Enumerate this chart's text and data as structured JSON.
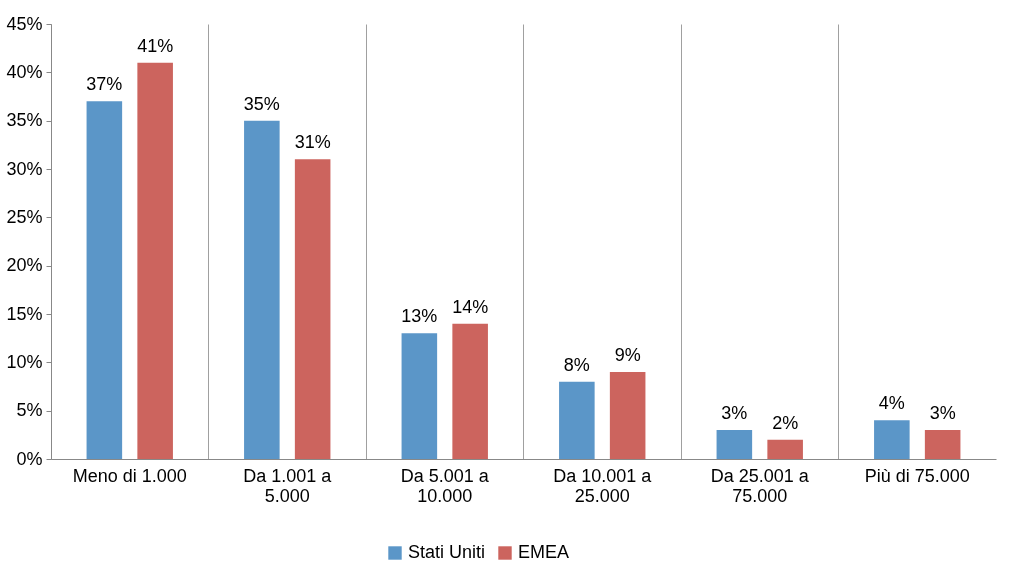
{
  "chart_data": {
    "type": "bar",
    "categories": [
      "Meno di 1.000",
      "Da 1.001 a 5.000",
      "Da 5.001 a 10.000",
      "Da 10.001 a 25.000",
      "Da 25.001 a 75.000",
      "Più di 75.000"
    ],
    "series": [
      {
        "name": "Stati Uniti",
        "color": "#5b96c8",
        "values": [
          37,
          35,
          13,
          8,
          3,
          4
        ],
        "value_labels": [
          "37%",
          "35%",
          "13%",
          "8%",
          "3%",
          "4%"
        ]
      },
      {
        "name": "EMEA",
        "color": "#cc645e",
        "values": [
          41,
          31,
          14,
          9,
          2,
          3
        ],
        "value_labels": [
          "41%",
          "31%",
          "14%",
          "9%",
          "2%",
          "3%"
        ]
      }
    ],
    "ylim": [
      0,
      45
    ],
    "yticks": [
      {
        "value": 0,
        "label": "0%"
      },
      {
        "value": 5,
        "label": "5%"
      },
      {
        "value": 10,
        "label": "10%"
      },
      {
        "value": 15,
        "label": "15%"
      },
      {
        "value": 20,
        "label": "20%"
      },
      {
        "value": 25,
        "label": "25%"
      },
      {
        "value": 30,
        "label": "30%"
      },
      {
        "value": 35,
        "label": "35%"
      },
      {
        "value": 40,
        "label": "40%"
      },
      {
        "value": 45,
        "label": "45%"
      }
    ],
    "grid": "x",
    "legend": "bottom"
  }
}
